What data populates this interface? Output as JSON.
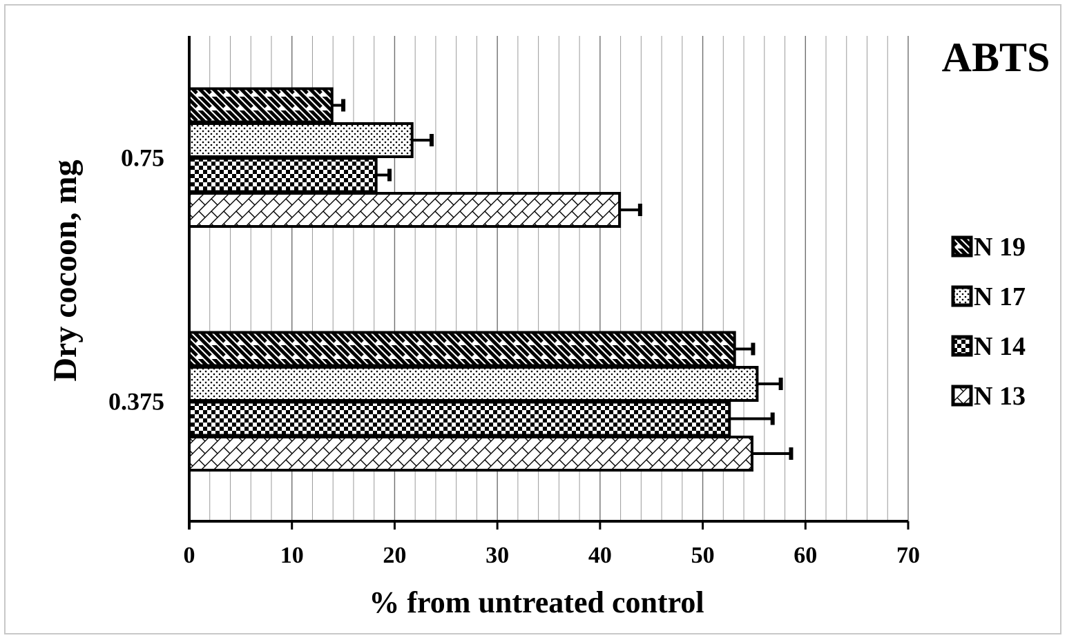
{
  "chart_data": {
    "type": "bar",
    "orientation": "horizontal",
    "title": "ABTS",
    "xlabel": "% from untreated control",
    "ylabel": "Dry cocoon, mg",
    "xlim": [
      0,
      70
    ],
    "xticks": [
      "0",
      "10",
      "20",
      "30",
      "40",
      "50",
      "60",
      "70"
    ],
    "grid": "vertical",
    "legend_position": "right",
    "categories": [
      "0.375",
      "0.75"
    ],
    "series": [
      {
        "name": "N 13",
        "pattern": "crosshatch",
        "values": [
          54.8,
          41.9
        ],
        "errors": [
          3.8,
          2.0
        ]
      },
      {
        "name": "N 14",
        "pattern": "checker",
        "values": [
          52.6,
          18.2
        ],
        "errors": [
          4.2,
          1.3
        ]
      },
      {
        "name": "N 17",
        "pattern": "dots",
        "values": [
          55.3,
          21.7
        ],
        "errors": [
          2.3,
          1.9
        ]
      },
      {
        "name": "N 19",
        "pattern": "diagonal",
        "values": [
          53.1,
          13.9
        ],
        "errors": [
          1.8,
          1.1
        ]
      }
    ],
    "legend": [
      "N 19",
      "N 17",
      "N 14",
      "N 13"
    ],
    "colors": {
      "bar_fill": "#ffffff",
      "bar_stroke": "#000000",
      "grid": "#9a9a9a"
    }
  }
}
